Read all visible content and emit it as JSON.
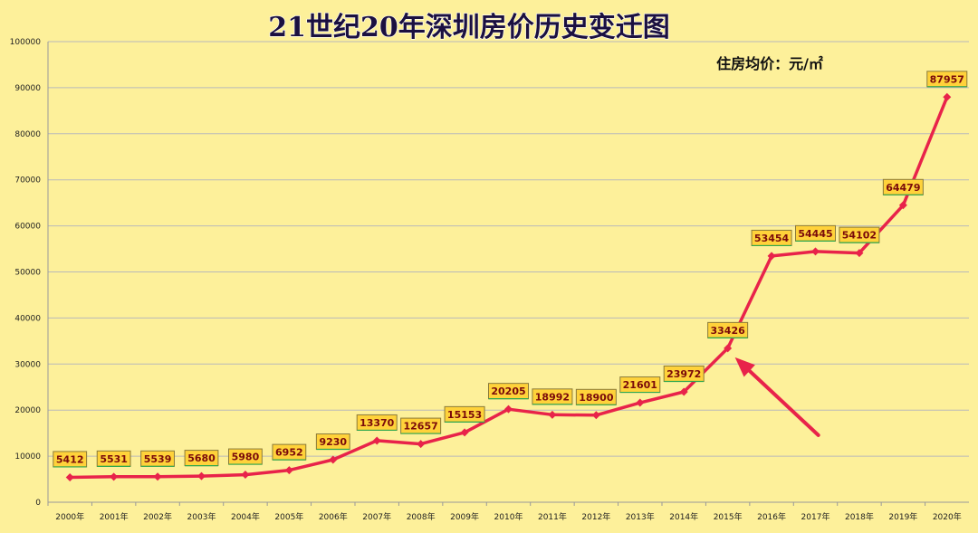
{
  "chart_data": {
    "type": "line",
    "title": "21世纪20年深圳房价历史变迁图",
    "unit_label": "住房均价：元/㎡",
    "categories": [
      "2000年",
      "2001年",
      "2002年",
      "2003年",
      "2004年",
      "2005年",
      "2006年",
      "2007年",
      "2008年",
      "2009年",
      "2010年",
      "2011年",
      "2012年",
      "2013年",
      "2014年",
      "2015年",
      "2016年",
      "2017年",
      "2018年",
      "2019年",
      "2020年"
    ],
    "values": [
      5412,
      5531,
      5539,
      5680,
      5980,
      6952,
      9230,
      13370,
      12657,
      15153,
      20205,
      18992,
      18900,
      21601,
      23972,
      33426,
      53454,
      54445,
      54102,
      64479,
      87957
    ],
    "ylim": [
      0,
      100000
    ],
    "yticks": [
      0,
      10000,
      20000,
      30000,
      40000,
      50000,
      60000,
      70000,
      80000,
      90000,
      100000
    ],
    "grid": true,
    "legend": "none",
    "annotation": "arrow pointing to 2015 value"
  },
  "colors": {
    "background": "#fdf09a",
    "line": "#e8234a",
    "grid": "#b9b9b9",
    "label_fill": "#ffd23a",
    "label_border": "#8a7a3a"
  }
}
